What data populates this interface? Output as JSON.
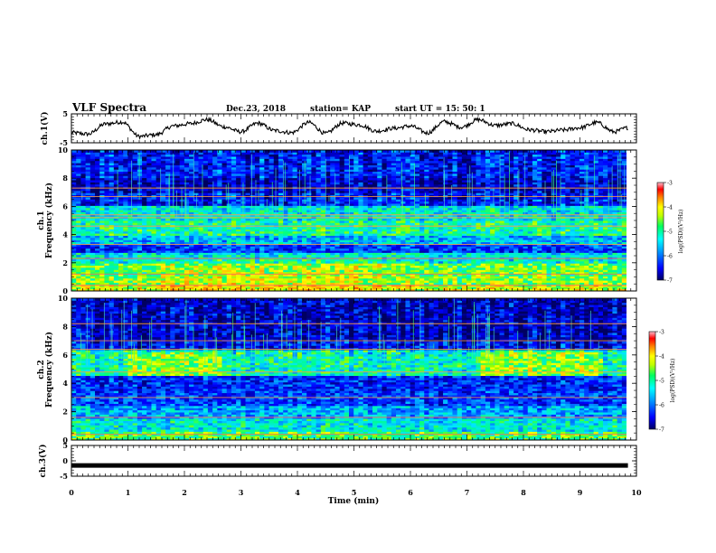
{
  "header": {
    "title": "VLF Spectra",
    "date": "Dec.23, 2018",
    "station": "station= KAP",
    "start": "start  UT  =   15: 50: 1"
  },
  "chart_data": [
    {
      "type": "line",
      "panel": "ch1-waveform",
      "ylabel": "ch.1(V)",
      "ylim": [
        -5,
        5
      ],
      "yticks": [
        "5",
        "-5"
      ],
      "xlim": [
        0,
        9.85
      ],
      "x": [
        0,
        0.3,
        0.6,
        0.9,
        1.2,
        1.5,
        1.8,
        2.1,
        2.4,
        2.7,
        3.0,
        3.3,
        3.6,
        3.9,
        4.2,
        4.5,
        4.8,
        5.1,
        5.4,
        5.7,
        6.0,
        6.3,
        6.6,
        6.9,
        7.2,
        7.5,
        7.8,
        8.1,
        8.4,
        8.7,
        9.0,
        9.3,
        9.6,
        9.85
      ],
      "values": [
        -1.5,
        -2.0,
        1.5,
        2.2,
        -2.8,
        -2.2,
        0.8,
        1.6,
        3.0,
        0.5,
        -1.2,
        1.8,
        -0.8,
        -1.5,
        2.0,
        -1.8,
        1.8,
        1.2,
        -1.0,
        0.0,
        0.8,
        -1.6,
        2.3,
        0.4,
        3.0,
        1.0,
        1.6,
        -0.5,
        -1.2,
        -0.6,
        0.2,
        2.0,
        -1.2,
        0.2
      ]
    },
    {
      "type": "heatmap",
      "panel": "ch1-spectrogram",
      "ylabel": "ch.1\nFrequency (kHz)",
      "ylim": [
        0,
        10
      ],
      "yticks": [
        "0",
        "2",
        "4",
        "6",
        "8",
        "10"
      ],
      "xlim": [
        0,
        9.85
      ],
      "bands": [
        {
          "f0": 0.0,
          "f1": 0.5,
          "level": -4.8
        },
        {
          "f0": 0.5,
          "f1": 1.0,
          "level": -5.0
        },
        {
          "f0": 1.0,
          "f1": 2.0,
          "level": -5.1
        },
        {
          "f0": 2.0,
          "f1": 2.8,
          "level": -5.6
        },
        {
          "f0": 2.8,
          "f1": 3.4,
          "level": -6.3
        },
        {
          "f0": 3.4,
          "f1": 4.0,
          "level": -5.8
        },
        {
          "f0": 4.0,
          "f1": 5.0,
          "level": -5.4
        },
        {
          "f0": 5.0,
          "f1": 6.0,
          "level": -5.6
        },
        {
          "f0": 6.0,
          "f1": 7.0,
          "level": -6.4
        },
        {
          "f0": 7.0,
          "f1": 8.0,
          "level": -6.6
        },
        {
          "f0": 8.0,
          "f1": 10.0,
          "level": -6.4
        }
      ],
      "lines_khz": [
        0.4,
        1.2,
        2.3,
        3.3,
        4.6,
        5.2,
        5.4,
        6.7,
        7.3
      ],
      "colorbar": {
        "label": "log(PSD)(V²/Hz)",
        "range": [
          -7,
          -3
        ],
        "ticks": [
          "-3",
          "-4",
          "-5",
          "-6",
          "-7"
        ]
      }
    },
    {
      "type": "heatmap",
      "panel": "ch2-spectrogram",
      "ylabel": "ch.2\nFrequency (kHz)",
      "ylim": [
        0,
        10
      ],
      "yticks": [
        "0",
        "2",
        "4",
        "6",
        "8",
        "10"
      ],
      "xlim": [
        0,
        9.85
      ],
      "bands": [
        {
          "f0": 0.0,
          "f1": 0.6,
          "level": -5.2
        },
        {
          "f0": 0.6,
          "f1": 1.5,
          "level": -5.6
        },
        {
          "f0": 1.5,
          "f1": 2.5,
          "level": -5.9
        },
        {
          "f0": 2.5,
          "f1": 3.5,
          "level": -6.3
        },
        {
          "f0": 3.5,
          "f1": 4.5,
          "level": -6.4
        },
        {
          "f0": 4.5,
          "f1": 6.3,
          "level": -5.5
        },
        {
          "f0": 6.3,
          "f1": 7.0,
          "level": -6.5
        },
        {
          "f0": 7.0,
          "f1": 10.0,
          "level": -6.7
        }
      ],
      "lines_khz": [
        0.4,
        1.6,
        3.0,
        4.8,
        6.4,
        7.0,
        8.2
      ],
      "colorbar": {
        "label": "log(PSD)(V²/Hz)",
        "range": [
          -7,
          -3
        ],
        "ticks": [
          "-3",
          "-4",
          "-5",
          "-6",
          "-7"
        ]
      }
    },
    {
      "type": "line",
      "panel": "ch3-waveform",
      "ylabel": "ch.3(V)",
      "ylim": [
        -5,
        5
      ],
      "yticks": [
        "5",
        "0",
        "-5"
      ],
      "xlim": [
        0,
        9.85
      ],
      "x": [
        0,
        9.85
      ],
      "values": [
        -1.5,
        -1.5
      ]
    }
  ],
  "xaxis": {
    "label": "Time  (min)",
    "ticks": [
      "0",
      "1",
      "2",
      "3",
      "4",
      "5",
      "6",
      "7",
      "8",
      "9",
      "10"
    ]
  },
  "colors": {
    "ink": "#000000",
    "cmap": [
      "#00008a",
      "#0000ff",
      "#00a0ff",
      "#00ffff",
      "#00ff80",
      "#80ff00",
      "#ffff00",
      "#ff8000",
      "#ff0000",
      "#ffb0c0"
    ]
  }
}
